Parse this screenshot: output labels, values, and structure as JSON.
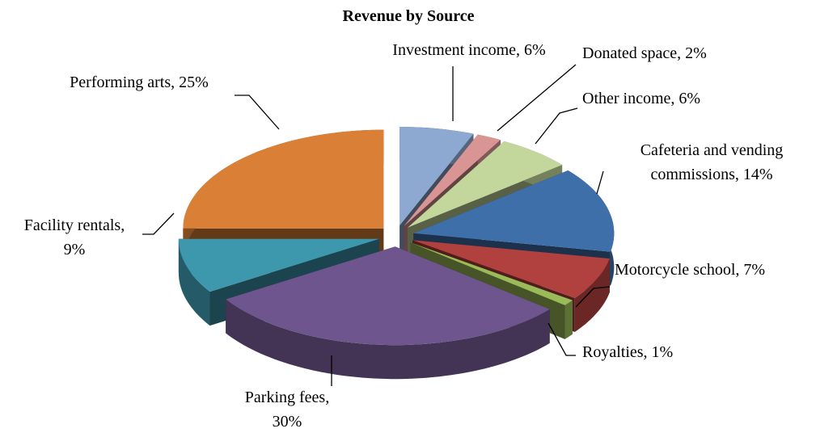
{
  "chart_data": {
    "type": "pie",
    "title": "Revenue by Source",
    "values": [
      6,
      2,
      6,
      14,
      7,
      1,
      30,
      9,
      25
    ],
    "value_labels": [
      [
        "Investment income, 6%"
      ],
      [
        "Donated space, 2%"
      ],
      [
        "Other income, 6%"
      ],
      [
        "Cafeteria and vending",
        "commissions, 14%"
      ],
      [
        "Motorcycle school, 7%"
      ],
      [
        "Royalties, 1%"
      ],
      [
        "Parking fees,",
        "30%"
      ],
      [
        "Facility rentals,",
        "9%"
      ],
      [
        "Performing arts, 25%"
      ]
    ],
    "colors": [
      "#8ea9d1",
      "#d99594",
      "#c3d69b",
      "#3f6fa8",
      "#b0413e",
      "#9bbb59",
      "#6f558e",
      "#3d97ad",
      "#d98036"
    ],
    "exploded": true,
    "three_d": true
  }
}
